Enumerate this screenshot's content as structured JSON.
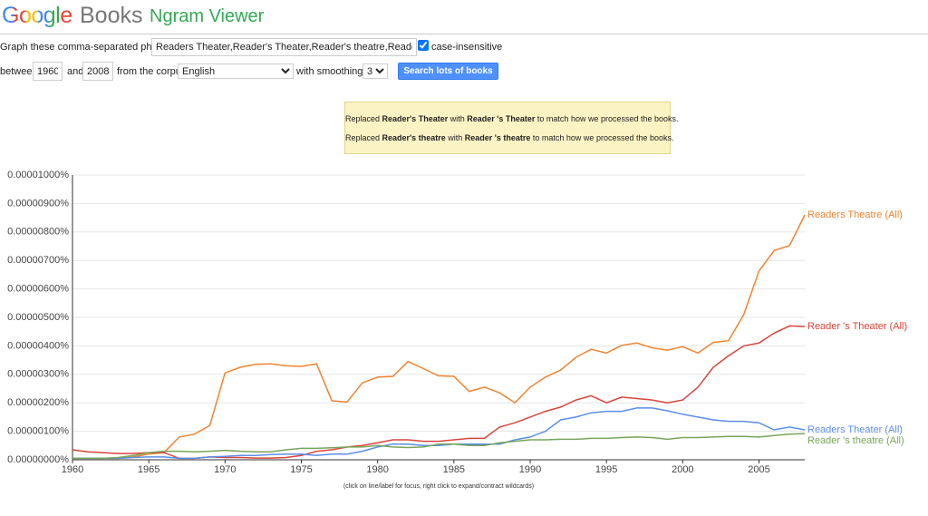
{
  "header": {
    "logo": "Google",
    "product": "Books",
    "title": "Ngram Viewer"
  },
  "form": {
    "phrases_label": "Graph these comma-separated phrases:",
    "phrases": "Readers Theater,Reader's Theater,Reader's theatre,Readers Theatre",
    "case_insensitive_label": "case-insensitive",
    "between_label": "between",
    "start_year": "1960",
    "and_label": "and",
    "end_year": "2008",
    "corpus_label": "from the corpus",
    "corpus": "English",
    "smoothing_label": "with smoothing of",
    "smoothing": "3",
    "search_button": "Search lots of books"
  },
  "notice": {
    "lines": [
      {
        "parts": [
          "Replaced ",
          "Reader's Theater",
          " with ",
          "Reader 's Theater",
          " to match how we processed the books."
        ]
      },
      {
        "parts": [
          "Replaced ",
          "Reader's theatre",
          " with ",
          "Reader 's theatre",
          " to match how we processed the books."
        ]
      }
    ]
  },
  "chart_data": {
    "type": "line",
    "footnote": "(click on line/label for focus, right click to expand/contract wildcards)",
    "x": [
      1960,
      1961,
      1962,
      1963,
      1964,
      1965,
      1966,
      1967,
      1968,
      1969,
      1970,
      1971,
      1972,
      1973,
      1974,
      1975,
      1976,
      1977,
      1978,
      1979,
      1980,
      1981,
      1982,
      1983,
      1984,
      1985,
      1986,
      1987,
      1988,
      1989,
      1990,
      1991,
      1992,
      1993,
      1994,
      1995,
      1996,
      1997,
      1998,
      1999,
      2000,
      2001,
      2002,
      2003,
      2004,
      2005,
      2006,
      2007,
      2008
    ],
    "xlim": [
      1960,
      2008
    ],
    "xticks": [
      1960,
      1965,
      1970,
      1975,
      1980,
      1985,
      1990,
      1995,
      2000,
      2005
    ],
    "ylim": [
      0,
      1e-05
    ],
    "yticks": [
      {
        "value": 0,
        "label": "0.00000000%"
      },
      {
        "value": 1e-06,
        "label": "0.00000100%"
      },
      {
        "value": 2e-06,
        "label": "0.00000200%"
      },
      {
        "value": 3e-06,
        "label": "0.00000300%"
      },
      {
        "value": 4e-06,
        "label": "0.00000400%"
      },
      {
        "value": 5e-06,
        "label": "0.00000500%"
      },
      {
        "value": 6e-06,
        "label": "0.00000600%"
      },
      {
        "value": 7e-06,
        "label": "0.00000700%"
      },
      {
        "value": 8e-06,
        "label": "0.00000800%"
      },
      {
        "value": 9e-06,
        "label": "0.00000900%"
      },
      {
        "value": 1e-05,
        "label": "0.00001000%"
      }
    ],
    "grid": true,
    "series": [
      {
        "name": "Readers Theatre (All)",
        "color": "#ee8432",
        "values": [
          5e-08,
          5e-08,
          5e-08,
          5e-08,
          1e-07,
          2e-07,
          2.5e-07,
          8e-07,
          9e-07,
          1.2e-06,
          3.05e-06,
          3.25e-06,
          3.35e-06,
          3.37e-06,
          3.3e-06,
          3.28e-06,
          3.37e-06,
          2.07e-06,
          2.03e-06,
          2.7e-06,
          2.9e-06,
          2.93e-06,
          3.45e-06,
          3.2e-06,
          2.95e-06,
          2.93e-06,
          2.4e-06,
          2.55e-06,
          2.35e-06,
          2e-06,
          2.55e-06,
          2.9e-06,
          3.15e-06,
          3.6e-06,
          3.88e-06,
          3.75e-06,
          4.02e-06,
          4.1e-06,
          3.93e-06,
          3.85e-06,
          3.97e-06,
          3.75e-06,
          4.12e-06,
          4.18e-06,
          5.1e-06,
          6.63e-06,
          7.35e-06,
          7.52e-06,
          8.6e-06
        ]
      },
      {
        "name": "Reader 's Theater (All)",
        "color": "#d9453d",
        "values": [
          3.5e-07,
          2.8e-07,
          2.5e-07,
          2.2e-07,
          2.2e-07,
          2.5e-07,
          2.5e-07,
          5e-08,
          5e-08,
          1e-07,
          8e-08,
          8e-08,
          6e-08,
          6e-08,
          8e-08,
          1.5e-07,
          3e-07,
          3.5e-07,
          4.5e-07,
          5e-07,
          6e-07,
          7e-07,
          7e-07,
          6.5e-07,
          6.5e-07,
          7e-07,
          7.5e-07,
          7.5e-07,
          1.15e-06,
          1.3e-06,
          1.5e-06,
          1.7e-06,
          1.85e-06,
          2.1e-06,
          2.25e-06,
          2e-06,
          2.2e-06,
          2.15e-06,
          2.1e-06,
          2e-06,
          2.1e-06,
          2.55e-06,
          3.25e-06,
          3.65e-06,
          4e-06,
          4.1e-06,
          4.45e-06,
          4.7e-06,
          4.68e-06
        ]
      },
      {
        "name": "Readers Theater (All)",
        "color": "#5b8ee6",
        "values": [
          5e-08,
          5e-08,
          5e-08,
          5e-08,
          8e-08,
          1e-07,
          1e-07,
          5e-08,
          5e-08,
          1e-07,
          1.2e-07,
          1.5e-07,
          1.5e-07,
          1.8e-07,
          2e-07,
          2e-07,
          1.5e-07,
          2e-07,
          2e-07,
          3e-07,
          4.5e-07,
          5.5e-07,
          5.5e-07,
          5e-07,
          5e-07,
          5.5e-07,
          5.5e-07,
          5.5e-07,
          5.5e-07,
          7e-07,
          8e-07,
          1e-06,
          1.4e-06,
          1.5e-06,
          1.65e-06,
          1.7e-06,
          1.7e-06,
          1.82e-06,
          1.82e-06,
          1.72e-06,
          1.6e-06,
          1.5e-06,
          1.4e-06,
          1.35e-06,
          1.35e-06,
          1.3e-06,
          1.05e-06,
          1.15e-06,
          1.05e-06
        ]
      },
      {
        "name": "Reader 's theatre (All)",
        "color": "#78a55a",
        "values": [
          5e-08,
          5e-08,
          5e-08,
          8e-08,
          1.5e-07,
          2.5e-07,
          3e-07,
          3e-07,
          2.8e-07,
          3e-07,
          3.3e-07,
          3e-07,
          2.8e-07,
          2.8e-07,
          3.5e-07,
          4e-07,
          4e-07,
          4.2e-07,
          4.5e-07,
          4.5e-07,
          5e-07,
          4.5e-07,
          4.3e-07,
          4.5e-07,
          5.5e-07,
          5.5e-07,
          5e-07,
          5e-07,
          6e-07,
          6.5e-07,
          7e-07,
          7e-07,
          7.2e-07,
          7.2e-07,
          7.5e-07,
          7.5e-07,
          7.8e-07,
          8e-07,
          7.8e-07,
          7.2e-07,
          7.8e-07,
          7.8e-07,
          8e-07,
          8.2e-07,
          8.2e-07,
          8e-07,
          8.5e-07,
          9e-07,
          9.2e-07
        ]
      }
    ]
  }
}
